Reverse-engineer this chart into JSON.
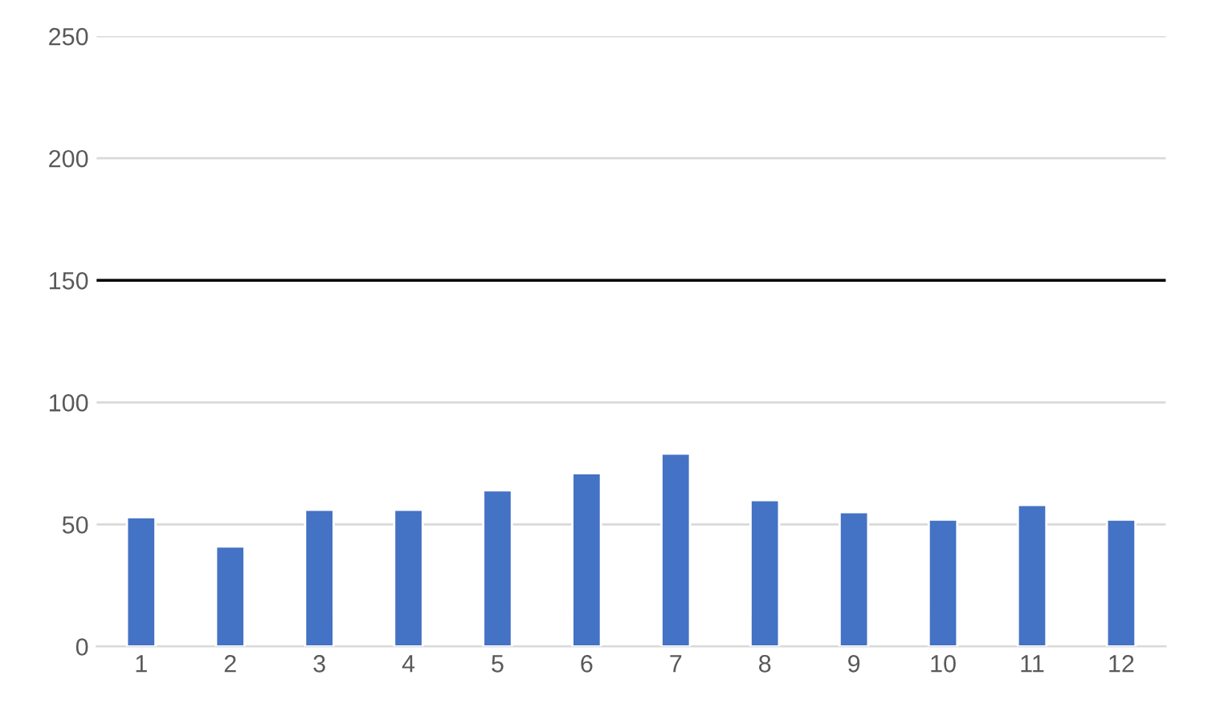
{
  "chart_data": {
    "type": "bar",
    "categories": [
      "1",
      "2",
      "3",
      "4",
      "5",
      "6",
      "7",
      "8",
      "9",
      "10",
      "11",
      "12"
    ],
    "values": [
      53,
      41,
      56,
      56,
      64,
      71,
      79,
      60,
      55,
      52,
      58,
      52
    ],
    "color": "#4472c4",
    "ylim": [
      0,
      250
    ],
    "yticks": [
      0,
      50,
      100,
      150,
      200,
      250
    ],
    "grid": "y",
    "ref_lines": [
      {
        "axis": "y",
        "value": 150,
        "color": "#000000",
        "line_style": "solid"
      }
    ]
  }
}
